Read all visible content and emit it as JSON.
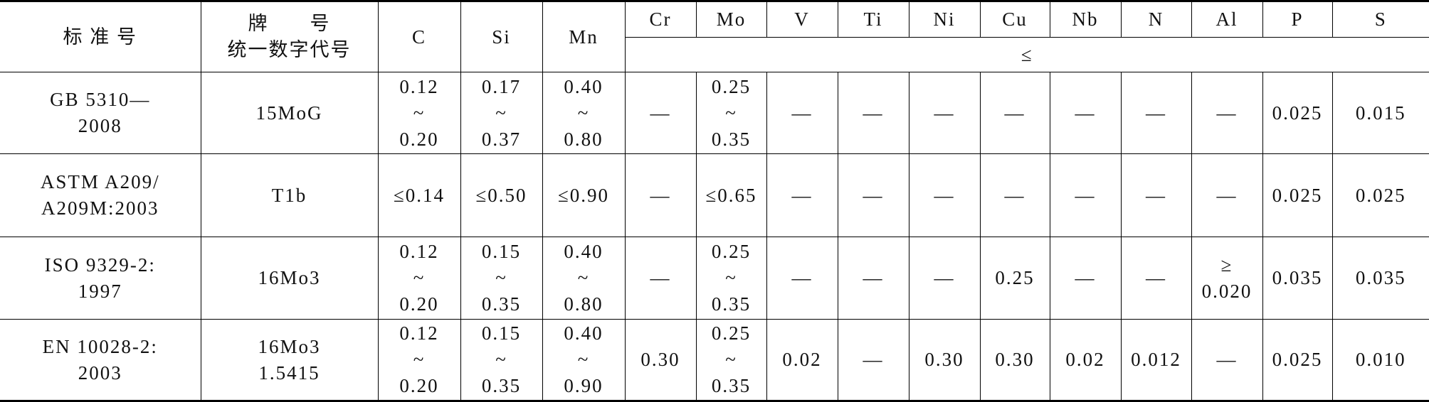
{
  "table": {
    "header": {
      "standard": "标 准 号",
      "grade": [
        "牌　　号",
        "统一数字代号"
      ],
      "elements": [
        "C",
        "Si",
        "Mn",
        "Cr",
        "Mo",
        "V",
        "Ti",
        "Ni",
        "Cu",
        "Nb",
        "N",
        "Al",
        "P",
        "S"
      ],
      "limit": "≤"
    },
    "rows": [
      [
        [
          "GB 5310—",
          "2008"
        ],
        [
          "15MoG"
        ],
        [
          "0.12",
          "~",
          "0.20"
        ],
        [
          "0.17",
          "~",
          "0.37"
        ],
        [
          "0.40",
          "~",
          "0.80"
        ],
        [
          "—"
        ],
        [
          "0.25",
          "~",
          "0.35"
        ],
        [
          "—"
        ],
        [
          "—"
        ],
        [
          "—"
        ],
        [
          "—"
        ],
        [
          "—"
        ],
        [
          "—"
        ],
        [
          "—"
        ],
        [
          "0.025"
        ],
        [
          "0.015"
        ]
      ],
      [
        [
          "ASTM A209/",
          "A209M:2003"
        ],
        [
          "T1b"
        ],
        [
          "≤0.14"
        ],
        [
          "≤0.50"
        ],
        [
          "≤0.90"
        ],
        [
          "—"
        ],
        [
          "≤0.65"
        ],
        [
          "—"
        ],
        [
          "—"
        ],
        [
          "—"
        ],
        [
          "—"
        ],
        [
          "—"
        ],
        [
          "—"
        ],
        [
          "—"
        ],
        [
          "0.025"
        ],
        [
          "0.025"
        ]
      ],
      [
        [
          "ISO 9329-2:",
          "1997"
        ],
        [
          "16Mo3"
        ],
        [
          "0.12",
          "~",
          "0.20"
        ],
        [
          "0.15",
          "~",
          "0.35"
        ],
        [
          "0.40",
          "~",
          "0.80"
        ],
        [
          "—"
        ],
        [
          "0.25",
          "~",
          "0.35"
        ],
        [
          "—"
        ],
        [
          "—"
        ],
        [
          "—"
        ],
        [
          "0.25"
        ],
        [
          "—"
        ],
        [
          "—"
        ],
        [
          "≥",
          "0.020"
        ],
        [
          "0.035"
        ],
        [
          "0.035"
        ]
      ],
      [
        [
          "EN 10028-2:",
          "2003"
        ],
        [
          "16Mo3",
          "1.5415"
        ],
        [
          "0.12",
          "~",
          "0.20"
        ],
        [
          "0.15",
          "~",
          "0.35"
        ],
        [
          "0.40",
          "~",
          "0.90"
        ],
        [
          "0.30"
        ],
        [
          "0.25",
          "~",
          "0.35"
        ],
        [
          "0.02"
        ],
        [
          "—"
        ],
        [
          "0.30"
        ],
        [
          "0.30"
        ],
        [
          "0.02"
        ],
        [
          "0.012"
        ],
        [
          "—"
        ],
        [
          "0.025"
        ],
        [
          "0.010"
        ]
      ]
    ]
  }
}
